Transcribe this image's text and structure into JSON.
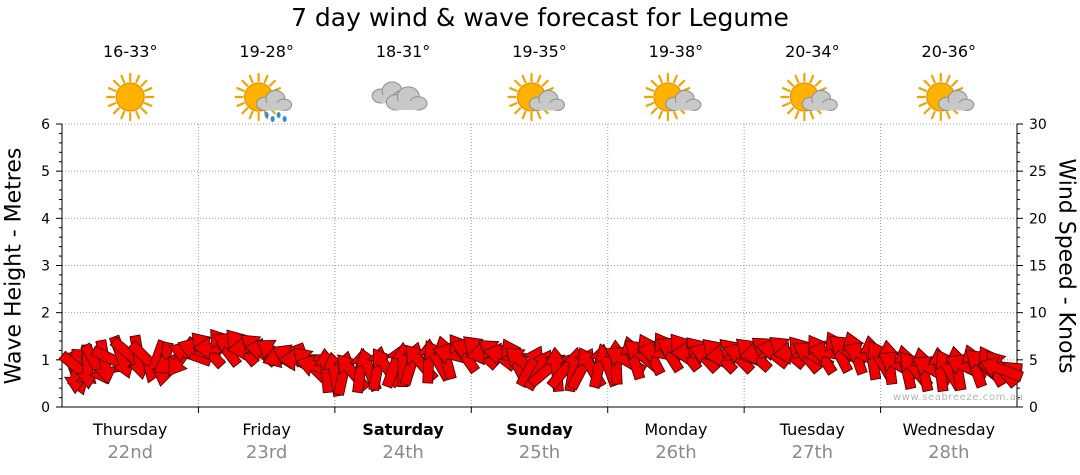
{
  "title": "7 day wind & wave forecast for Legume",
  "watermark": "www.seabreeze.com.au",
  "chart_data": {
    "type": "line",
    "ylabel_left": "Wave Height - Metres",
    "ylabel_right": "Wind Speed - Knots",
    "ylim_left": [
      0,
      6
    ],
    "ylim_right": [
      0,
      30
    ],
    "yticks_left": [
      "0",
      "1",
      "2",
      "3",
      "4",
      "5",
      "6"
    ],
    "yticks_right": [
      "0",
      "5",
      "10",
      "15",
      "20",
      "25",
      "30"
    ],
    "grid": true,
    "days": [
      {
        "name": "Thursday",
        "date": "22nd",
        "temp": "16-33°",
        "icon": "sun-icon",
        "bold": false
      },
      {
        "name": "Friday",
        "date": "23rd",
        "temp": "19-28°",
        "icon": "sun-cloud-rain-icon",
        "bold": false
      },
      {
        "name": "Saturday",
        "date": "24th",
        "temp": "18-31°",
        "icon": "cloud-icon",
        "bold": true
      },
      {
        "name": "Sunday",
        "date": "25th",
        "temp": "19-35°",
        "icon": "sun-cloud-icon",
        "bold": true
      },
      {
        "name": "Monday",
        "date": "26th",
        "temp": "19-38°",
        "icon": "sun-cloud-icon",
        "bold": false
      },
      {
        "name": "Tuesday",
        "date": "27th",
        "temp": "20-34°",
        "icon": "sun-cloud-icon",
        "bold": false
      },
      {
        "name": "Wednesday",
        "date": "28th",
        "temp": "20-36°",
        "icon": "sun-cloud-icon",
        "bold": false
      }
    ],
    "wind_series": {
      "name": "",
      "unit": "knots",
      "color": "#ee0000",
      "x_days": [
        0.0,
        0.25,
        0.5,
        0.75,
        1.0,
        1.25,
        1.5,
        1.75,
        2.0,
        2.25,
        2.5,
        2.75,
        3.0,
        3.25,
        3.5,
        3.75,
        4.0,
        4.25,
        4.5,
        4.75,
        5.0,
        5.25,
        5.5,
        5.75,
        6.0,
        6.25,
        6.5,
        6.75,
        7.0
      ],
      "speed_knots": [
        3.5,
        4.5,
        5.5,
        4.5,
        6.0,
        6.5,
        6.0,
        5.0,
        3.5,
        4.0,
        4.5,
        5.0,
        6.0,
        5.5,
        4.0,
        4.0,
        4.5,
        5.5,
        6.0,
        5.5,
        5.5,
        6.0,
        5.5,
        6.0,
        5.0,
        4.0,
        4.0,
        4.5,
        4.0
      ],
      "direction_deg": [
        70,
        60,
        40,
        100,
        200,
        210,
        190,
        180,
        260,
        250,
        270,
        240,
        200,
        190,
        300,
        280,
        250,
        220,
        210,
        200,
        200,
        190,
        210,
        220,
        240,
        230,
        240,
        220,
        200
      ]
    }
  }
}
